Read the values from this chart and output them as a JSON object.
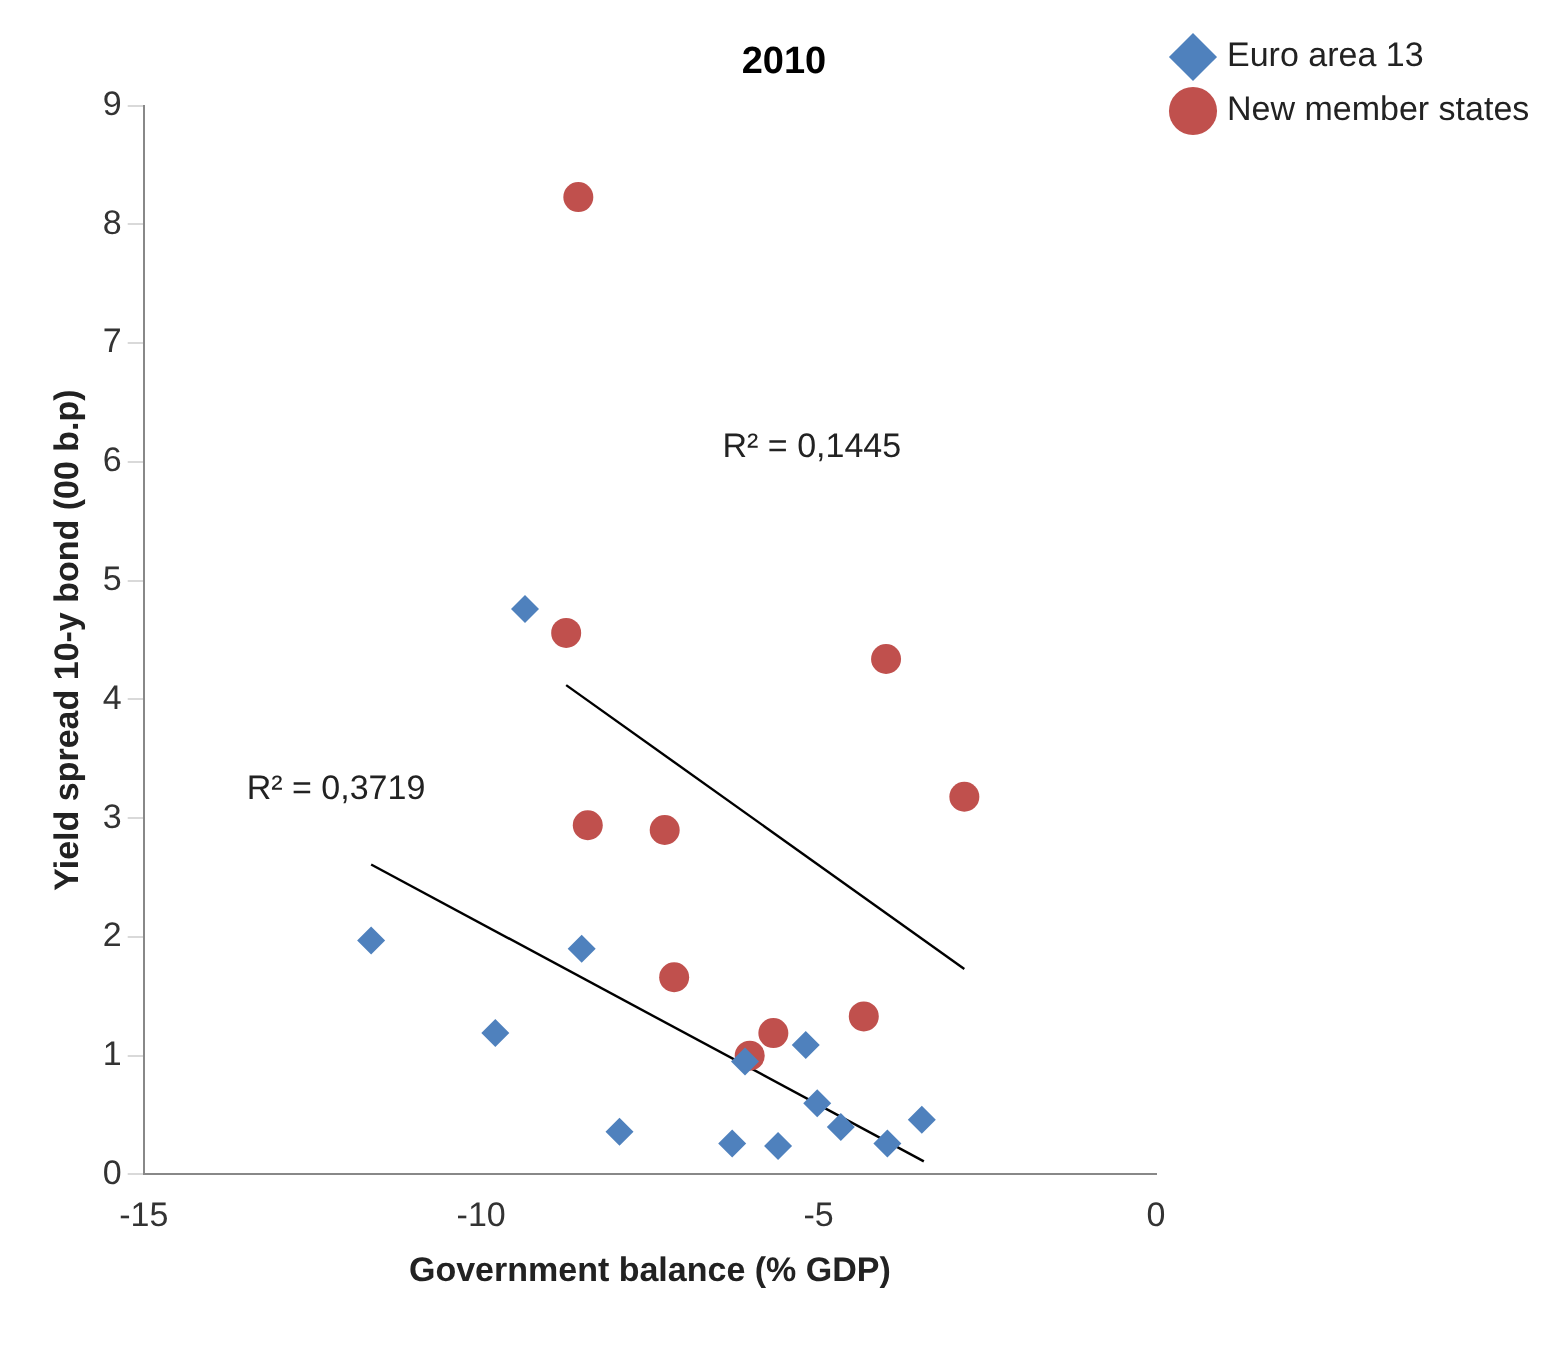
{
  "chart_data": {
    "type": "scatter",
    "title": "2010",
    "xlabel": "Government balance (% GDP)",
    "ylabel": "Yield spread 10-y bond (00 b.p)",
    "xlim": [
      -15,
      0
    ],
    "xticks": [
      -15,
      -10,
      -5,
      0
    ],
    "ylim": [
      0,
      9
    ],
    "yticks": [
      0,
      1,
      2,
      3,
      4,
      5,
      6,
      7,
      8,
      9
    ],
    "grid": false,
    "legend": "top right",
    "series": [
      {
        "name": "Euro area 13",
        "color": "#4f81bd",
        "marker": "diamond",
        "x": [
          -11.63,
          -9.79,
          -8.51,
          -7.95,
          -6.28,
          -6.09,
          -5.6,
          -5.19,
          -5.02,
          -4.67,
          -3.98,
          -3.47,
          -9.35
        ],
        "values": [
          1.97,
          1.19,
          1.9,
          0.36,
          0.26,
          0.95,
          0.24,
          1.09,
          0.6,
          0.4,
          0.26,
          0.46,
          4.76
        ]
      },
      {
        "name": "New member states",
        "color": "#c0504d",
        "marker": "circle",
        "x": [
          -8.56,
          -8.74,
          -4.0,
          -8.42,
          -7.28,
          -2.84,
          -7.14,
          -6.02,
          -5.67,
          -4.33
        ],
        "values": [
          8.23,
          4.56,
          4.34,
          2.94,
          2.9,
          3.18,
          1.66,
          1.0,
          1.19,
          1.33
        ]
      },
      {
        "type": "line",
        "color": "#000000",
        "marker": "none",
        "x": [
          -11.63,
          -3.44
        ],
        "values": [
          2.61,
          0.11
        ]
      },
      {
        "type": "line",
        "color": "#000000",
        "marker": "none",
        "x": [
          -8.74,
          -2.84
        ],
        "values": [
          4.12,
          1.73
        ]
      }
    ],
    "annotations": [
      "R² = 0,3719",
      "R² = 0,1445"
    ]
  }
}
